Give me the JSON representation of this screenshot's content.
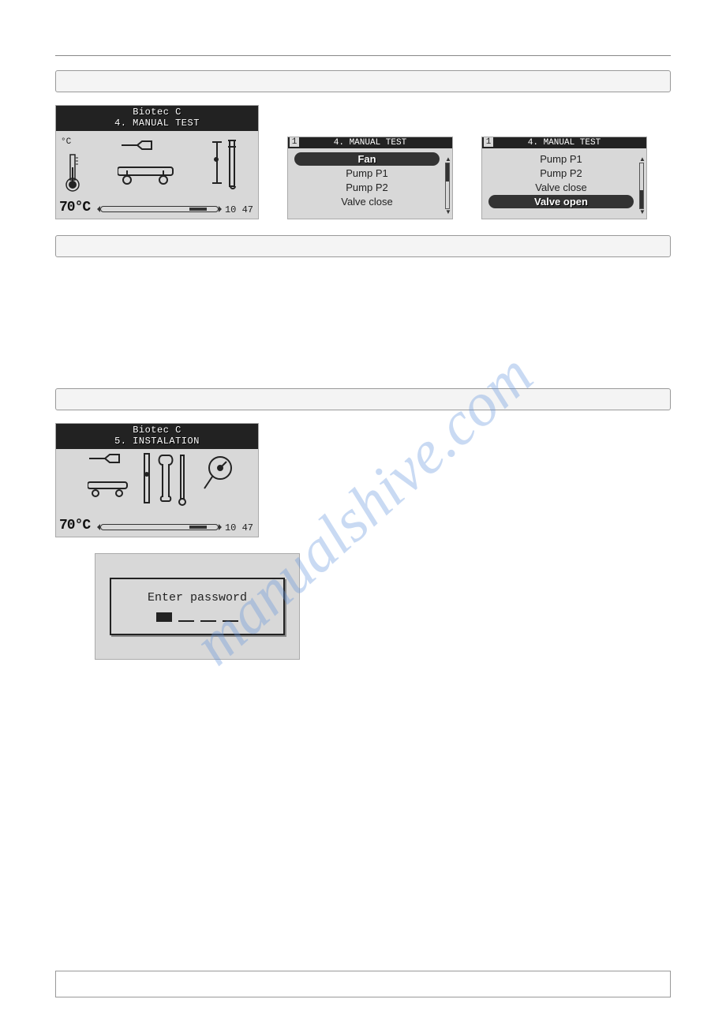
{
  "watermark": "manualshive.com",
  "colors": {
    "lcd_bg": "#d8d8d8",
    "lcd_dark": "#222222",
    "page_bg": "#ffffff",
    "band_bg": "#f4f4f4",
    "watermark": "rgba(100,150,220,0.35)"
  },
  "section1": {
    "screen_main": {
      "title_line1": "Biotec C",
      "title_line2": "4. MANUAL TEST",
      "temp_unit": "°C",
      "temp_value": "70°C",
      "time": "10 47"
    },
    "list_a": {
      "page_num": "1",
      "title": "4. MANUAL TEST",
      "items": [
        {
          "label": "Fan",
          "selected": true
        },
        {
          "label": "Pump P1",
          "selected": false
        },
        {
          "label": "Pump P2",
          "selected": false
        },
        {
          "label": "Valve close",
          "selected": false
        }
      ],
      "thumb": {
        "top_pct": 0,
        "height_pct": 40
      }
    },
    "list_b": {
      "page_num": "1",
      "title": "4. MANUAL TEST",
      "items": [
        {
          "label": "Pump P1",
          "selected": false
        },
        {
          "label": "Pump P2",
          "selected": false
        },
        {
          "label": "Valve close",
          "selected": false
        },
        {
          "label": "Valve open",
          "selected": true
        }
      ],
      "thumb": {
        "top_pct": 60,
        "height_pct": 40
      }
    }
  },
  "section2": {
    "screen_main": {
      "title_line1": "Biotec C",
      "title_line2": "5. INSTALATION",
      "temp_unit": "°C",
      "temp_value": "70°C",
      "time": "10 47"
    },
    "password_label": "Enter password"
  }
}
